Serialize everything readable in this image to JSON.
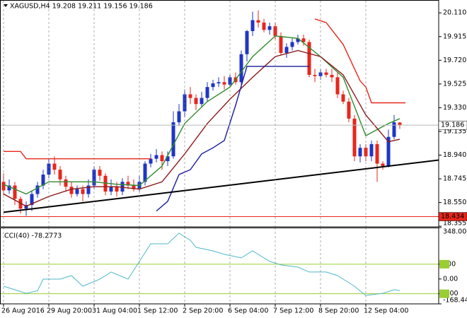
{
  "chart_data": [
    {
      "type": "candlestick",
      "title": "XAGUSD,H4  19.208 19.211 19.156 19.186",
      "ylim": [
        18.35,
        20.21
      ],
      "yticks": [
        {
          "value": 20.11,
          "label": "20.110"
        },
        19.915,
        {
          "value": 19.72,
          "label": "19.720"
        },
        19.525,
        {
          "value": 19.33,
          "label": "19.330"
        },
        19.135,
        {
          "value": 18.94,
          "label": "18.940"
        },
        18.745,
        {
          "value": 18.55,
          "label": "18.550"
        },
        18.355
      ],
      "xticks": [
        {
          "value": 0,
          "label": "26 Aug 2016"
        },
        {
          "value": 8,
          "label": "29 Aug 20:00"
        },
        {
          "value": 16,
          "label": "31 Aug 04:00"
        },
        {
          "value": 24,
          "label": "1 Sep 12:00"
        },
        {
          "value": 32,
          "label": "2 Sep 20:00"
        },
        {
          "value": 40,
          "label": "6 Sep 04:00"
        },
        {
          "value": 48,
          "label": "7 Sep 12:00"
        },
        {
          "value": 56,
          "label": "8 Sep 20:00"
        },
        {
          "value": 64,
          "label": "12 Sep 04:00"
        }
      ],
      "grid": true,
      "up_color": "#1f35c4",
      "down_color": "#e8261b",
      "open": [
        18.72,
        18.65,
        18.69,
        18.58,
        18.5,
        18.53,
        18.62,
        18.69,
        18.78,
        18.87,
        18.82,
        18.74,
        18.68,
        18.62,
        18.66,
        18.62,
        18.69,
        18.82,
        18.77,
        18.64,
        18.68,
        18.64,
        18.72,
        18.69,
        18.66,
        18.72,
        18.87,
        18.91,
        18.94,
        18.89,
        18.93,
        19.21,
        19.3,
        19.44,
        19.41,
        19.36,
        19.41,
        19.5,
        19.53,
        19.54,
        19.52,
        19.58,
        19.54,
        19.77,
        19.96,
        20.05,
        20.03,
        19.97,
        20.0,
        19.92,
        19.78,
        19.83,
        19.87,
        19.9,
        19.87,
        19.6,
        19.59,
        19.62,
        19.6,
        19.58,
        19.44,
        19.38,
        19.24,
        18.93,
        19.0,
        18.93,
        19.03,
        18.87,
        18.85,
        19.09,
        19.208
      ],
      "high": [
        18.79,
        18.74,
        18.72,
        18.6,
        18.56,
        18.65,
        18.72,
        18.82,
        18.91,
        18.93,
        18.85,
        18.77,
        18.72,
        18.69,
        18.69,
        18.74,
        18.85,
        18.85,
        18.79,
        18.74,
        18.72,
        18.75,
        18.77,
        18.74,
        18.77,
        18.89,
        18.95,
        18.99,
        18.97,
        18.97,
        19.3,
        19.36,
        19.48,
        19.5,
        19.44,
        19.46,
        19.54,
        19.56,
        19.58,
        19.59,
        19.6,
        19.62,
        19.8,
        19.97,
        20.12,
        20.13,
        20.06,
        20.03,
        20.03,
        19.95,
        19.86,
        19.9,
        19.93,
        19.93,
        19.89,
        19.65,
        19.65,
        19.65,
        19.65,
        19.62,
        19.47,
        19.41,
        19.27,
        19.03,
        19.03,
        19.06,
        19.06,
        18.89,
        19.15,
        19.27,
        19.211
      ],
      "low": [
        18.61,
        18.62,
        18.53,
        18.46,
        18.44,
        18.48,
        18.59,
        18.66,
        18.75,
        18.78,
        18.69,
        18.64,
        18.59,
        18.6,
        18.56,
        18.59,
        18.66,
        18.73,
        18.61,
        18.61,
        18.6,
        18.61,
        18.66,
        18.64,
        18.64,
        18.69,
        18.84,
        18.88,
        18.82,
        18.85,
        18.91,
        19.18,
        19.25,
        19.36,
        19.31,
        19.33,
        19.38,
        19.47,
        19.5,
        19.48,
        19.5,
        19.52,
        19.5,
        19.71,
        19.92,
        19.99,
        19.95,
        19.93,
        19.89,
        19.76,
        19.74,
        19.8,
        19.85,
        19.84,
        19.58,
        19.54,
        19.56,
        19.58,
        19.54,
        19.41,
        19.36,
        19.21,
        18.89,
        18.88,
        18.89,
        18.89,
        18.72,
        18.82,
        18.84,
        19.07,
        19.156
      ],
      "close": [
        18.65,
        18.69,
        18.58,
        18.5,
        18.53,
        18.62,
        18.69,
        18.78,
        18.87,
        18.82,
        18.74,
        18.68,
        18.62,
        18.66,
        18.62,
        18.69,
        18.82,
        18.77,
        18.64,
        18.68,
        18.64,
        18.72,
        18.69,
        18.66,
        18.72,
        18.87,
        18.91,
        18.94,
        18.89,
        18.93,
        19.21,
        19.3,
        19.44,
        19.41,
        19.36,
        19.41,
        19.5,
        19.53,
        19.54,
        19.52,
        19.58,
        19.54,
        19.77,
        19.96,
        20.05,
        20.03,
        19.97,
        20.0,
        19.92,
        19.78,
        19.83,
        19.87,
        19.9,
        19.87,
        19.6,
        19.59,
        19.62,
        19.6,
        19.58,
        19.44,
        19.38,
        19.24,
        18.93,
        19.0,
        18.93,
        19.03,
        18.87,
        18.85,
        19.09,
        19.21,
        19.186
      ],
      "overlays": [
        {
          "color": "#2e8b2e",
          "x": [
            0,
            4,
            8,
            12,
            16,
            20,
            24,
            28,
            32,
            36,
            40,
            44,
            48,
            52,
            56,
            60,
            64,
            68,
            70
          ],
          "values": [
            18.7,
            18.62,
            18.72,
            18.72,
            18.72,
            18.7,
            18.69,
            18.85,
            19.2,
            19.38,
            19.5,
            19.75,
            19.92,
            19.9,
            19.75,
            19.58,
            19.1,
            19.2,
            19.24
          ]
        },
        {
          "color": "#8b1a1a",
          "x": [
            0,
            4,
            8,
            12,
            16,
            20,
            24,
            28,
            32,
            36,
            40,
            44,
            48,
            52,
            56,
            60,
            64,
            68,
            70
          ],
          "values": [
            18.62,
            18.52,
            18.6,
            18.66,
            18.68,
            18.68,
            18.66,
            18.72,
            18.95,
            19.2,
            19.4,
            19.58,
            19.75,
            19.8,
            19.75,
            19.6,
            19.27,
            19.05,
            19.07
          ]
        },
        {
          "color": "#1a1a99",
          "x": [
            27,
            29,
            31,
            33,
            35,
            37,
            39,
            41,
            43,
            54
          ],
          "values": [
            18.48,
            18.56,
            18.78,
            18.82,
            18.95,
            19.0,
            19.06,
            19.35,
            19.67,
            19.67
          ]
        },
        {
          "color": "#e8261b",
          "x": [
            0,
            3,
            4,
            26,
            null,
            55,
            57,
            60,
            63,
            64,
            65,
            71
          ],
          "values": [
            18.97,
            18.97,
            18.91,
            18.91,
            null,
            20.06,
            20.03,
            19.85,
            19.55,
            19.5,
            19.37,
            19.37
          ]
        },
        {
          "color": "#000000",
          "x": [
            0,
            77
          ],
          "values": [
            18.47,
            18.9
          ]
        }
      ],
      "price_lines": [
        {
          "value": 19.186,
          "color": "#b8b8b8",
          "box": "#ffffff",
          "text_color": "#000000"
        },
        {
          "value": 18.434,
          "color": "#e8261b",
          "box": "#e8261b",
          "text_color": "#ffffff"
        }
      ]
    },
    {
      "type": "line",
      "title": "CCI(40) -78.2773",
      "color": "#4fb8c8",
      "ylim": [
        -168.441,
        348.0005
      ],
      "yticks": [
        348.0005,
        100,
        {
          "value": 0,
          "label": "0.00"
        },
        -100,
        -168.441
      ],
      "levels": [
        100,
        -100
      ],
      "level_color": "#9acd32",
      "x": [
        0,
        2,
        4,
        6,
        7,
        10,
        12,
        14,
        17,
        19,
        22,
        24,
        26,
        29,
        31,
        33,
        34,
        37,
        39,
        42,
        44,
        47,
        49,
        52,
        54,
        57,
        59,
        62,
        63,
        64,
        67,
        69,
        70
      ],
      "values": [
        -49,
        -73,
        -97,
        -80,
        -1,
        -1,
        23,
        -49,
        -1,
        47,
        -1,
        119,
        238,
        238,
        310,
        262,
        214,
        190,
        167,
        143,
        190,
        119,
        95,
        80,
        47,
        47,
        23,
        -49,
        -82,
        -111,
        -97,
        -73,
        -78.2773
      ]
    }
  ]
}
